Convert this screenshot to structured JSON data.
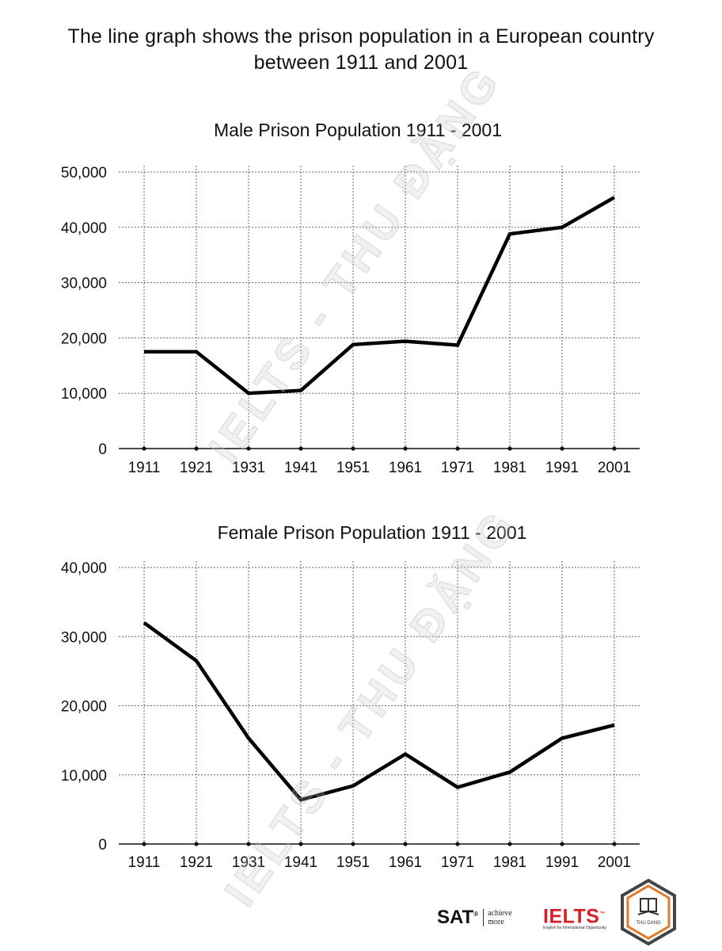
{
  "page": {
    "title_line1": "The line graph shows the prison population in a European country",
    "title_line2": "between 1911 and 2001"
  },
  "chart_data": [
    {
      "type": "line",
      "title": "Male Prison Population 1911 - 2001",
      "xlabel": "",
      "ylabel": "",
      "categories": [
        "1911",
        "1921",
        "1931",
        "1941",
        "1951",
        "1961",
        "1971",
        "1981",
        "1991",
        "2001"
      ],
      "series": [
        {
          "values": [
            17500,
            17500,
            10000,
            10500,
            18800,
            19400,
            18700,
            38800,
            40000,
            45400
          ]
        }
      ],
      "ylim": [
        0,
        50000
      ],
      "yticks": [
        0,
        10000,
        20000,
        30000,
        40000,
        50000
      ],
      "ytick_labels": [
        "0",
        "10,000",
        "20,000",
        "30,000",
        "40,000",
        "50,000"
      ],
      "grid": true,
      "line_color": "#000000"
    },
    {
      "type": "line",
      "title": "Female Prison Population 1911 - 2001",
      "xlabel": "",
      "ylabel": "",
      "categories": [
        "1911",
        "1921",
        "1931",
        "1941",
        "1951",
        "1961",
        "1971",
        "1981",
        "1991",
        "2001"
      ],
      "series": [
        {
          "values": [
            32000,
            26500,
            15300,
            6400,
            8400,
            13000,
            8200,
            10400,
            15300,
            17200
          ]
        }
      ],
      "ylim": [
        0,
        40000
      ],
      "yticks": [
        0,
        10000,
        20000,
        30000,
        40000
      ],
      "ytick_labels": [
        "0",
        "10,000",
        "20,000",
        "30,000",
        "40,000"
      ],
      "grid": true,
      "line_color": "#000000"
    }
  ],
  "watermark": {
    "text": "IELTS - THU ĐẶNG"
  },
  "footer": {
    "sat_label": "SAT",
    "sat_reg": "®",
    "sat_tag_line1": "achieve",
    "sat_tag_line2": "more",
    "ielts_label": "IELTS",
    "ielts_tm": "™",
    "ielts_tagline": "English for International Opportunity",
    "badge_text": "THU DANG",
    "colors": {
      "ielts_red": "#d81f26",
      "badge_orange": "#e07a2a",
      "badge_border": "#444444"
    }
  }
}
